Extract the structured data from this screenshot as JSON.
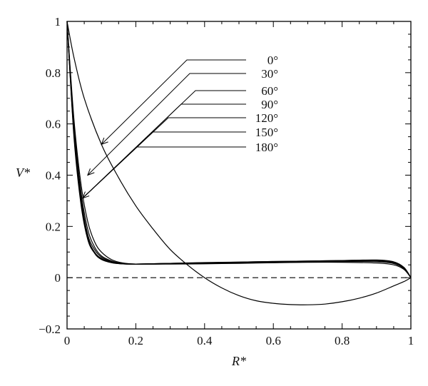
{
  "chart_data": {
    "type": "line",
    "title": "",
    "xlabel": "R*",
    "ylabel": "V*",
    "xlim": [
      0,
      1
    ],
    "ylim": [
      -0.2,
      1
    ],
    "grid": false,
    "legend_placement": "top-center",
    "x_ticks": [
      0,
      0.2,
      0.4,
      0.6,
      0.8,
      1
    ],
    "x_tick_labels": [
      "0",
      "0.2",
      "0.4",
      "0.6",
      "0.8",
      "1"
    ],
    "y_ticks": [
      -0.2,
      0,
      0.2,
      0.4,
      0.6,
      0.8,
      1
    ],
    "y_tick_labels": [
      "−0.2",
      "0",
      "0.2",
      "0.4",
      "0.6",
      "0.8",
      "1"
    ],
    "reference_line": {
      "y": 0,
      "style": "dashed"
    },
    "series": [
      {
        "name": "0°",
        "label": "0°",
        "x": [
          0,
          0.02,
          0.05,
          0.1,
          0.15,
          0.2,
          0.25,
          0.3,
          0.35,
          0.4,
          0.45,
          0.5,
          0.55,
          0.6,
          0.65,
          0.7,
          0.75,
          0.8,
          0.85,
          0.9,
          0.95,
          0.98,
          1
        ],
        "y": [
          1,
          0.86,
          0.7,
          0.52,
          0.39,
          0.28,
          0.19,
          0.11,
          0.05,
          0.0,
          -0.04,
          -0.07,
          -0.09,
          -0.1,
          -0.105,
          -0.106,
          -0.103,
          -0.094,
          -0.08,
          -0.06,
          -0.032,
          -0.015,
          0
        ]
      },
      {
        "name": "30°",
        "label": "30°",
        "x": [
          0,
          0.02,
          0.04,
          0.06,
          0.08,
          0.1,
          0.13,
          0.16,
          0.2,
          0.3,
          0.4,
          0.5,
          0.6,
          0.7,
          0.8,
          0.9,
          0.95,
          0.98,
          1
        ],
        "y": [
          1,
          0.62,
          0.37,
          0.22,
          0.14,
          0.1,
          0.07,
          0.058,
          0.053,
          0.053,
          0.054,
          0.056,
          0.058,
          0.06,
          0.06,
          0.057,
          0.05,
          0.032,
          0
        ]
      },
      {
        "name": "60°",
        "label": "60°",
        "x": [
          0,
          0.02,
          0.04,
          0.06,
          0.08,
          0.1,
          0.13,
          0.16,
          0.2,
          0.3,
          0.4,
          0.5,
          0.6,
          0.7,
          0.8,
          0.9,
          0.95,
          0.98,
          1
        ],
        "y": [
          1,
          0.6,
          0.34,
          0.19,
          0.12,
          0.085,
          0.065,
          0.056,
          0.053,
          0.054,
          0.055,
          0.057,
          0.059,
          0.061,
          0.063,
          0.062,
          0.055,
          0.035,
          0
        ]
      },
      {
        "name": "90°",
        "label": "90°",
        "x": [
          0,
          0.02,
          0.04,
          0.06,
          0.08,
          0.1,
          0.13,
          0.16,
          0.2,
          0.3,
          0.4,
          0.5,
          0.6,
          0.7,
          0.8,
          0.9,
          0.95,
          0.98,
          1
        ],
        "y": [
          1,
          0.58,
          0.32,
          0.17,
          0.11,
          0.08,
          0.062,
          0.055,
          0.053,
          0.055,
          0.057,
          0.059,
          0.061,
          0.063,
          0.065,
          0.065,
          0.058,
          0.037,
          0
        ]
      },
      {
        "name": "120°",
        "label": "120°",
        "x": [
          0,
          0.02,
          0.04,
          0.06,
          0.08,
          0.1,
          0.13,
          0.16,
          0.2,
          0.3,
          0.4,
          0.5,
          0.6,
          0.7,
          0.8,
          0.9,
          0.95,
          0.98,
          1
        ],
        "y": [
          1,
          0.57,
          0.31,
          0.16,
          0.1,
          0.075,
          0.06,
          0.054,
          0.053,
          0.056,
          0.058,
          0.06,
          0.062,
          0.064,
          0.066,
          0.067,
          0.06,
          0.038,
          0
        ]
      },
      {
        "name": "150°",
        "label": "150°",
        "x": [
          0,
          0.02,
          0.04,
          0.06,
          0.08,
          0.1,
          0.13,
          0.16,
          0.2,
          0.3,
          0.4,
          0.5,
          0.6,
          0.7,
          0.8,
          0.9,
          0.95,
          0.98,
          1
        ],
        "y": [
          1,
          0.56,
          0.3,
          0.155,
          0.098,
          0.073,
          0.059,
          0.054,
          0.053,
          0.056,
          0.058,
          0.061,
          0.063,
          0.065,
          0.067,
          0.068,
          0.061,
          0.039,
          0
        ]
      },
      {
        "name": "180°",
        "label": "180°",
        "x": [
          0,
          0.02,
          0.04,
          0.06,
          0.08,
          0.1,
          0.13,
          0.16,
          0.2,
          0.3,
          0.4,
          0.5,
          0.6,
          0.7,
          0.8,
          0.9,
          0.95,
          0.98,
          1
        ],
        "y": [
          1,
          0.55,
          0.29,
          0.15,
          0.095,
          0.071,
          0.058,
          0.054,
          0.053,
          0.056,
          0.059,
          0.061,
          0.063,
          0.065,
          0.067,
          0.069,
          0.062,
          0.04,
          0
        ]
      }
    ],
    "annotations": [
      {
        "series": "0°",
        "arrow_to": [
          0.1,
          0.52
        ]
      },
      {
        "series": "30°",
        "arrow_to": [
          0.06,
          0.4
        ]
      },
      {
        "series": "60°",
        "arrow_to": [
          0.045,
          0.31
        ]
      },
      {
        "series": "90°",
        "arrow_to": [
          0.045,
          0.31
        ]
      },
      {
        "series": "120°",
        "arrow_to": [
          0.045,
          0.31
        ]
      },
      {
        "series": "150°",
        "arrow_to": [
          0.045,
          0.31
        ]
      },
      {
        "series": "180°",
        "arrow_to": [
          0.045,
          0.31
        ]
      }
    ]
  }
}
